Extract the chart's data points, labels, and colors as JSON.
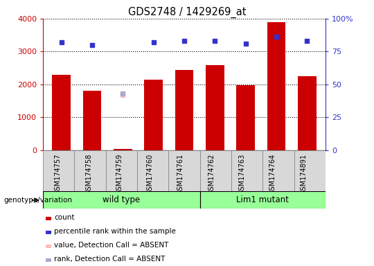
{
  "title": "GDS2748 / 1429269_at",
  "samples": [
    "GSM174757",
    "GSM174758",
    "GSM174759",
    "GSM174760",
    "GSM174761",
    "GSM174762",
    "GSM174763",
    "GSM174764",
    "GSM174891"
  ],
  "counts": [
    2300,
    1800,
    50,
    2150,
    2430,
    2580,
    1970,
    3900,
    2250
  ],
  "percentile_ranks": [
    82,
    80,
    null,
    82,
    83,
    83,
    81,
    86,
    83
  ],
  "absent_value": [
    null,
    null,
    1680,
    null,
    null,
    null,
    null,
    null,
    null
  ],
  "absent_rank": [
    null,
    null,
    43,
    null,
    null,
    null,
    null,
    null,
    null
  ],
  "wild_type_count": 5,
  "lim1_mutant_count": 4,
  "ylim_left": [
    0,
    4000
  ],
  "ylim_right": [
    0,
    100
  ],
  "yticks_left": [
    0,
    1000,
    2000,
    3000,
    4000
  ],
  "yticks_right": [
    0,
    25,
    50,
    75,
    100
  ],
  "ytick_labels_right": [
    "0",
    "25",
    "50",
    "75",
    "100%"
  ],
  "bar_color": "#cc0000",
  "dot_color": "#3333cc",
  "absent_bar_color": "#ffbbbb",
  "absent_dot_color": "#aaaacc",
  "group_label": "genotype/variation",
  "group1_label": "wild type",
  "group2_label": "Lim1 mutant",
  "group_bg_color": "#99ff99",
  "legend_items": [
    {
      "color": "#cc0000",
      "label": "count"
    },
    {
      "color": "#3333cc",
      "label": "percentile rank within the sample"
    },
    {
      "color": "#ffbbbb",
      "label": "value, Detection Call = ABSENT"
    },
    {
      "color": "#aaaacc",
      "label": "rank, Detection Call = ABSENT"
    }
  ],
  "fig_width": 5.4,
  "fig_height": 3.84,
  "dpi": 100
}
